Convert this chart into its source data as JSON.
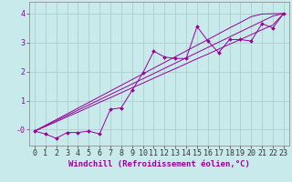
{
  "xlabel": "Windchill (Refroidissement éolien,°C)",
  "bg_color": "#c8eaea",
  "grid_color": "#a8c8c8",
  "line_color": "#990099",
  "x_data": [
    0,
    1,
    2,
    3,
    4,
    5,
    6,
    7,
    8,
    9,
    10,
    11,
    12,
    13,
    14,
    15,
    16,
    17,
    18,
    19,
    20,
    21,
    22,
    23
  ],
  "y_data": [
    -0.05,
    -0.15,
    -0.3,
    -0.1,
    -0.1,
    -0.05,
    -0.15,
    0.7,
    0.75,
    1.35,
    1.95,
    2.7,
    2.5,
    2.45,
    2.45,
    3.55,
    3.05,
    2.65,
    3.1,
    3.1,
    3.05,
    3.65,
    3.5,
    4.0
  ],
  "y_line1": [
    -0.05,
    0.147,
    0.344,
    0.541,
    0.738,
    0.935,
    1.132,
    1.329,
    1.526,
    1.723,
    1.92,
    2.117,
    2.314,
    2.511,
    2.708,
    2.905,
    3.1,
    3.3,
    3.5,
    3.69,
    3.89,
    3.98,
    3.99,
    4.0
  ],
  "y_line2": [
    -0.05,
    0.13,
    0.31,
    0.49,
    0.67,
    0.85,
    1.03,
    1.21,
    1.39,
    1.57,
    1.75,
    1.93,
    2.11,
    2.29,
    2.47,
    2.65,
    2.83,
    3.01,
    3.19,
    3.37,
    3.55,
    3.73,
    3.91,
    4.0
  ],
  "y_line3": [
    -0.05,
    0.11,
    0.27,
    0.44,
    0.6,
    0.77,
    0.94,
    1.1,
    1.27,
    1.44,
    1.6,
    1.77,
    1.94,
    2.1,
    2.27,
    2.44,
    2.6,
    2.77,
    2.94,
    3.1,
    3.27,
    3.44,
    3.6,
    4.0
  ],
  "ylim": [
    -0.55,
    4.4
  ],
  "xlim": [
    -0.5,
    23.5
  ],
  "yticks": [
    0,
    1,
    2,
    3,
    4
  ],
  "ytick_labels": [
    "-0",
    "1",
    "2",
    "3",
    "4"
  ],
  "xticks": [
    0,
    1,
    2,
    3,
    4,
    5,
    6,
    7,
    8,
    9,
    10,
    11,
    12,
    13,
    14,
    15,
    16,
    17,
    18,
    19,
    20,
    21,
    22,
    23
  ],
  "xlabel_fontsize": 6.5,
  "tick_fontsize": 6,
  "marker": "D",
  "marker_size": 2.0,
  "lw": 0.7
}
